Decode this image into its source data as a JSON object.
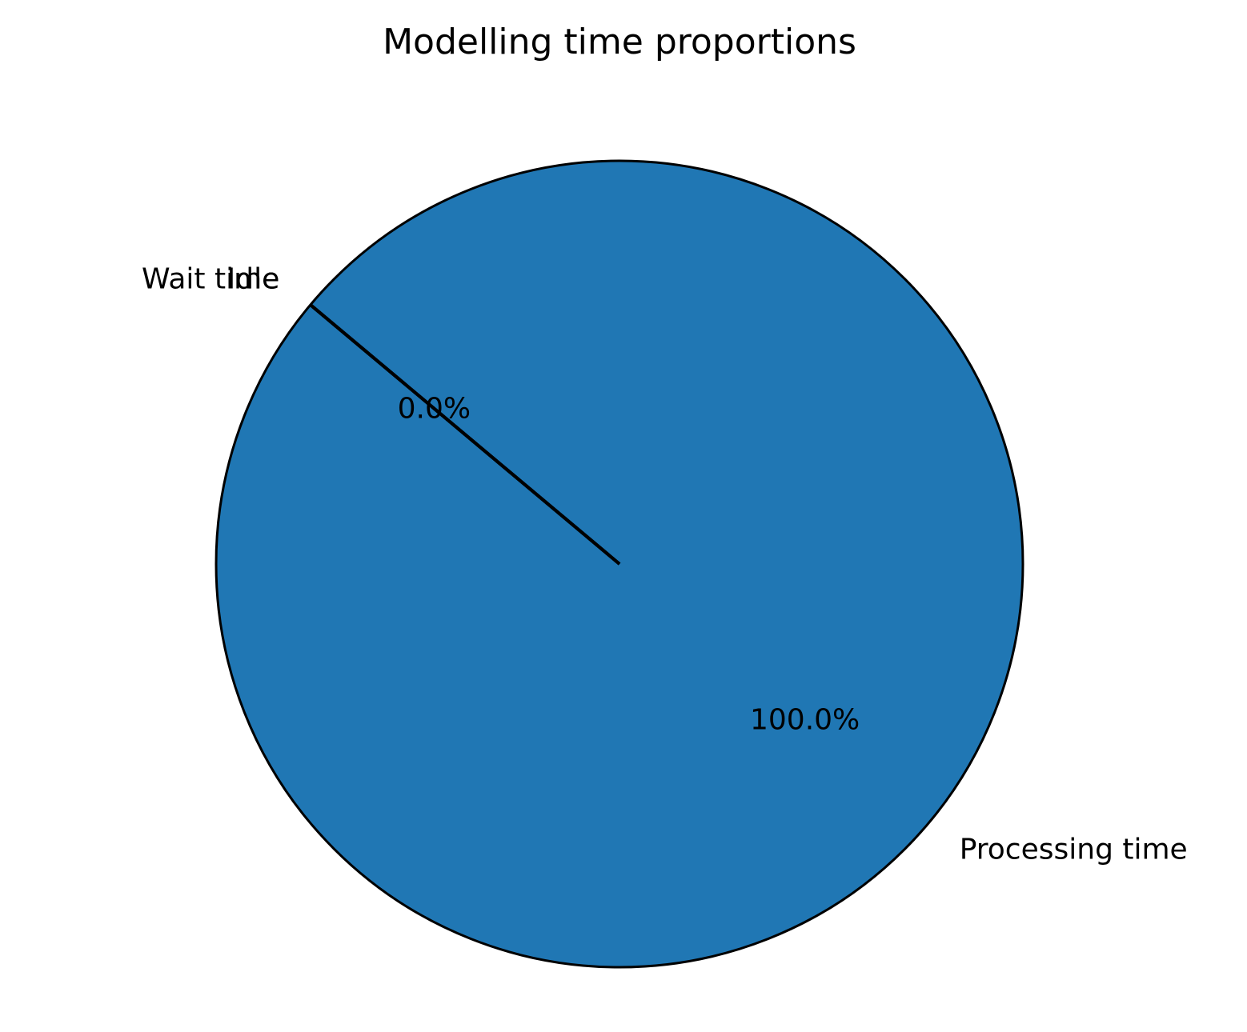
{
  "chart_data": {
    "type": "pie",
    "title": "Modelling time proportions",
    "slices": [
      {
        "label": "Processing time",
        "value": 100.0,
        "pct_label": "100.0%",
        "color": "#2077b4"
      },
      {
        "label": "Wait time",
        "value": 0.0,
        "pct_label": "0.0%",
        "color": "#ff7f0e"
      },
      {
        "label": "Idle",
        "value": 0.0,
        "pct_label": "",
        "color": "#2ca02c"
      }
    ],
    "start_angle_deg": 140,
    "edge_color": "#000000"
  }
}
